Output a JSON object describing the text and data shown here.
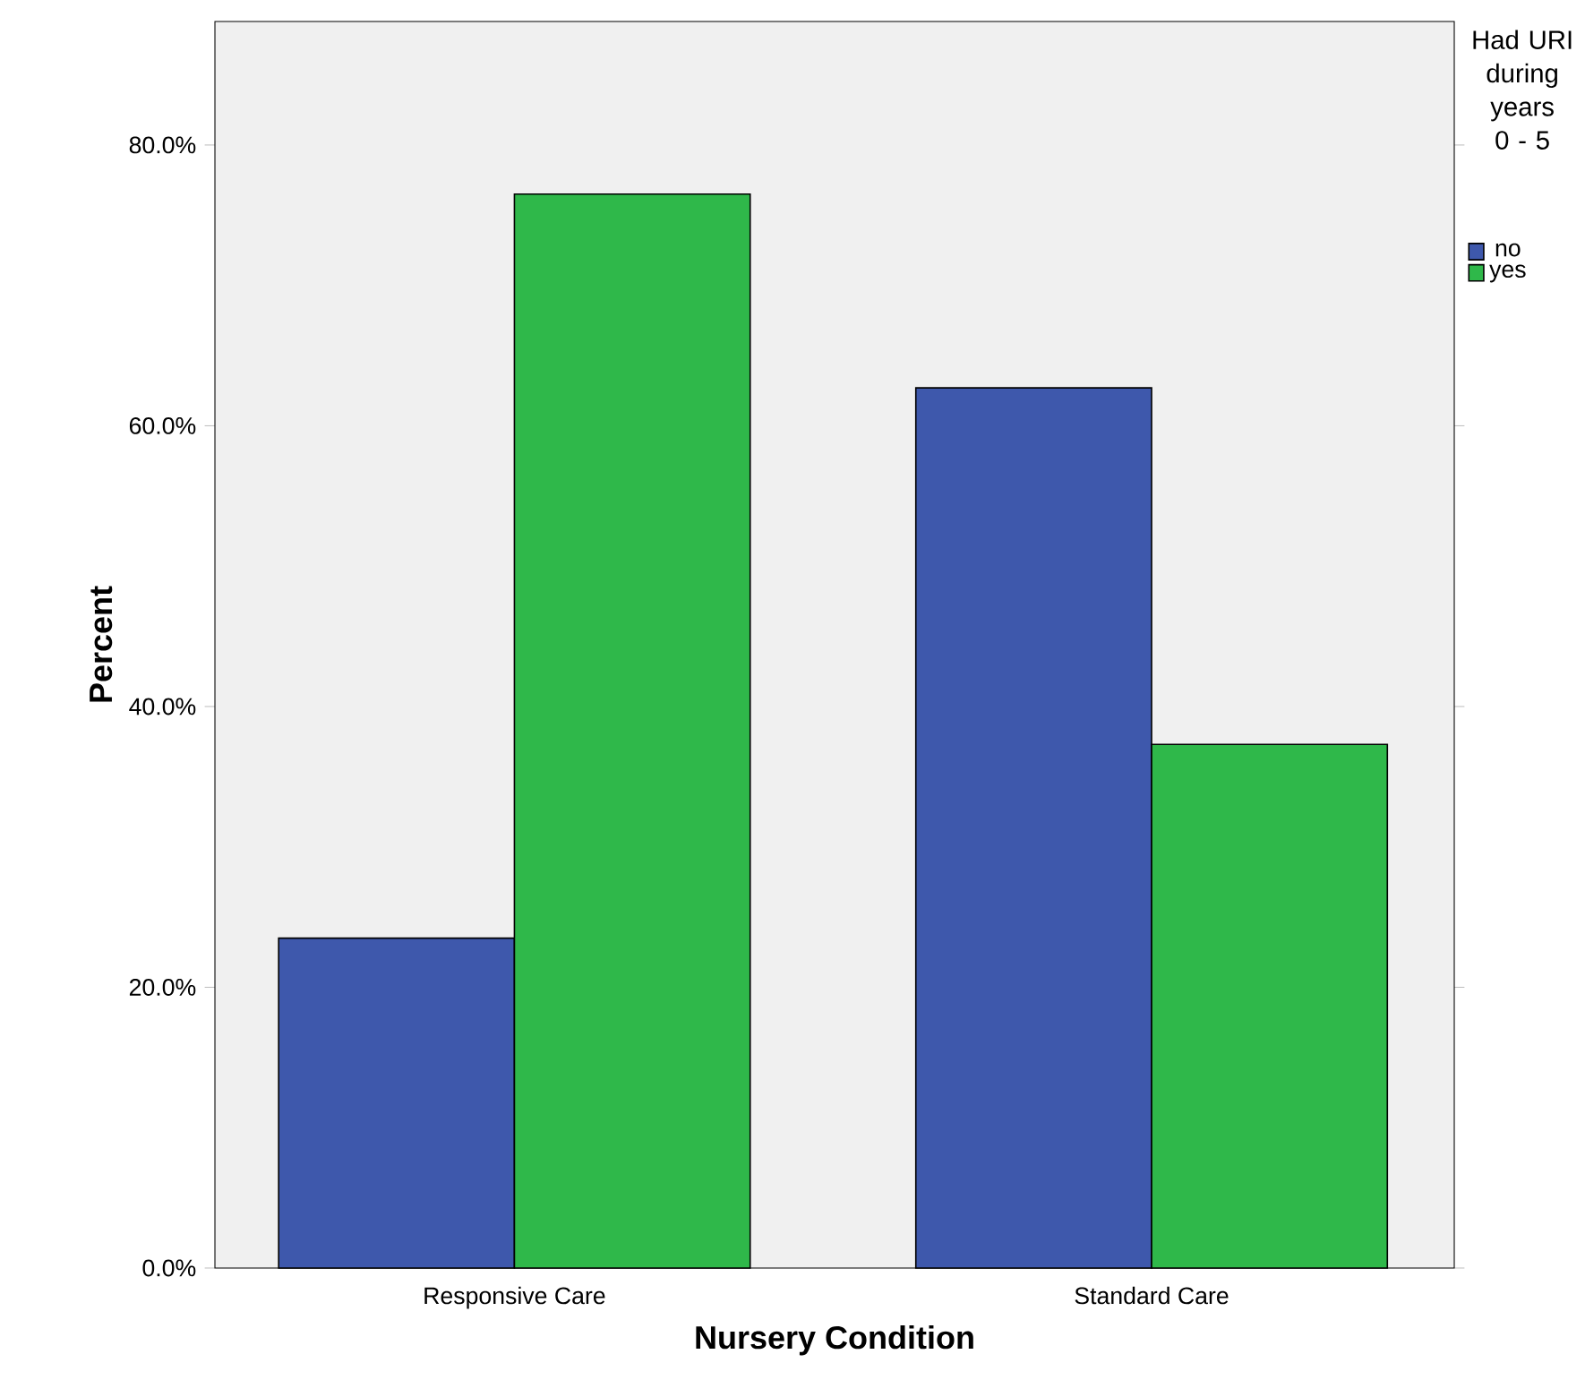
{
  "chart_data": {
    "type": "bar",
    "xlabel": "Nursery Condition",
    "ylabel": "Percent",
    "legend_title": "Had URI during years 0 - 5",
    "categories": [
      "Responsive Care",
      "Standard Care"
    ],
    "series": [
      {
        "name": "no",
        "color": "#3e58ac",
        "values": [
          23.5,
          62.7
        ]
      },
      {
        "name": "yes",
        "color": "#2fb84a",
        "values": [
          76.5,
          37.3
        ]
      }
    ],
    "ylim": [
      0,
      88.8
    ],
    "yticks": [
      {
        "value": 0,
        "label": "0.0%"
      },
      {
        "value": 20,
        "label": "20.0%"
      },
      {
        "value": 40,
        "label": "40.0%"
      },
      {
        "value": 60,
        "label": "60.0%"
      },
      {
        "value": 80,
        "label": "80.0%"
      }
    ],
    "grid": false,
    "legend": "right"
  }
}
